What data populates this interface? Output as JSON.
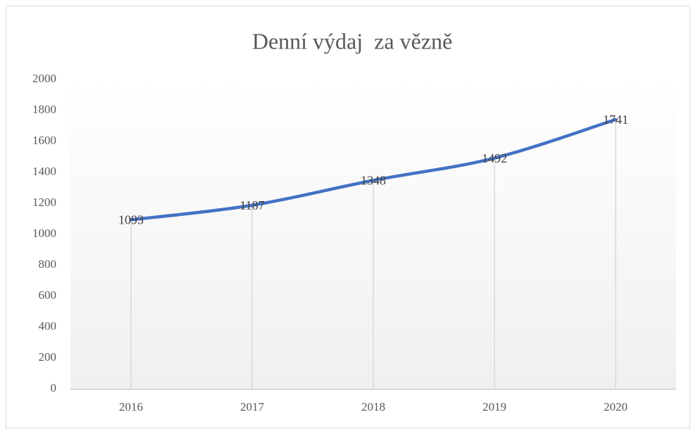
{
  "chart_data": {
    "type": "line",
    "title": "Denní výdaj  za vězně",
    "categories": [
      "2016",
      "2017",
      "2018",
      "2019",
      "2020"
    ],
    "series": [
      {
        "name": "Denní výdaj za vězně",
        "color": "#4472c4",
        "values": [
          1093,
          1187,
          1348,
          1492,
          1741
        ]
      }
    ],
    "ylim": [
      0,
      2000
    ],
    "yticks": [
      0,
      200,
      400,
      600,
      800,
      1000,
      1200,
      1400,
      1600,
      1800,
      2000
    ],
    "drop_lines": true,
    "smooth": true,
    "data_labels": true
  }
}
